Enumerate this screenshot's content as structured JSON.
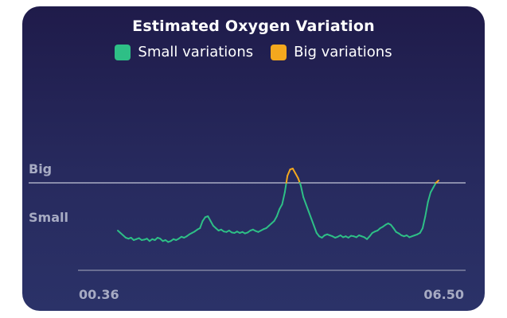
{
  "chart_data": {
    "type": "line",
    "title": "Estimated Oxygen Variation",
    "legend": [
      {
        "label": "Small variations",
        "color": "#2ebf86"
      },
      {
        "label": "Big variations",
        "color": "#f4a81e"
      }
    ],
    "y_labels": [
      "Big",
      "Small"
    ],
    "x_tick_labels": [
      "00.36",
      "06.50"
    ],
    "threshold_label": "Big",
    "threshold_value": 0,
    "ylim": [
      -2.0,
      1.0
    ],
    "series": [
      {
        "values": [
          -1.0,
          -1.05,
          -1.1,
          -1.15,
          -1.17,
          -1.15,
          -1.2,
          -1.18,
          -1.16,
          -1.2,
          -1.19,
          -1.17,
          -1.22,
          -1.18,
          -1.2,
          -1.15,
          -1.17,
          -1.22,
          -1.2,
          -1.24,
          -1.22,
          -1.18,
          -1.2,
          -1.17,
          -1.13,
          -1.15,
          -1.12,
          -1.08,
          -1.05,
          -1.02,
          -0.98,
          -0.95,
          -0.8,
          -0.72,
          -0.7,
          -0.8,
          -0.9,
          -0.95,
          -1.0,
          -0.98,
          -1.02,
          -1.03,
          -1.0,
          -1.04,
          -1.05,
          -1.02,
          -1.05,
          -1.03,
          -1.06,
          -1.04,
          -1.0,
          -0.98,
          -1.01,
          -1.03,
          -1.0,
          -0.97,
          -0.95,
          -0.9,
          -0.85,
          -0.8,
          -0.7,
          -0.55,
          -0.45,
          -0.2,
          0.15,
          0.28,
          0.3,
          0.2,
          0.1,
          -0.05,
          -0.3,
          -0.45,
          -0.6,
          -0.75,
          -0.9,
          -1.05,
          -1.12,
          -1.15,
          -1.1,
          -1.08,
          -1.1,
          -1.12,
          -1.15,
          -1.13,
          -1.1,
          -1.14,
          -1.12,
          -1.15,
          -1.11,
          -1.12,
          -1.14,
          -1.1,
          -1.12,
          -1.14,
          -1.18,
          -1.12,
          -1.05,
          -1.02,
          -1.0,
          -0.95,
          -0.92,
          -0.88,
          -0.85,
          -0.88,
          -0.95,
          -1.03,
          -1.06,
          -1.1,
          -1.12,
          -1.1,
          -1.14,
          -1.12,
          -1.1,
          -1.08,
          -1.05,
          -0.95,
          -0.7,
          -0.4,
          -0.2,
          -0.1,
          0.0,
          0.05
        ]
      }
    ]
  }
}
